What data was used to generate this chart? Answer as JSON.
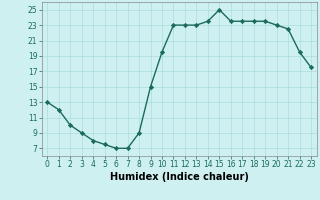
{
  "x": [
    0,
    1,
    2,
    3,
    4,
    5,
    6,
    7,
    8,
    9,
    10,
    11,
    12,
    13,
    14,
    15,
    16,
    17,
    18,
    19,
    20,
    21,
    22,
    23
  ],
  "y": [
    13,
    12,
    10,
    9,
    8,
    7.5,
    7,
    7,
    9,
    15,
    19.5,
    23,
    23,
    23,
    23.5,
    25,
    23.5,
    23.5,
    23.5,
    23.5,
    23,
    22.5,
    19.5,
    17.5
  ],
  "line_color": "#1a6b5a",
  "marker": "D",
  "marker_size": 2.2,
  "bg_color": "#cff0f0",
  "grid_color": "#aadddd",
  "xlabel": "Humidex (Indice chaleur)",
  "xlim": [
    -0.5,
    23.5
  ],
  "ylim": [
    6,
    26
  ],
  "yticks": [
    7,
    9,
    11,
    13,
    15,
    17,
    19,
    21,
    23,
    25
  ],
  "xticks": [
    0,
    1,
    2,
    3,
    4,
    5,
    6,
    7,
    8,
    9,
    10,
    11,
    12,
    13,
    14,
    15,
    16,
    17,
    18,
    19,
    20,
    21,
    22,
    23
  ],
  "tick_fontsize": 5.5,
  "xlabel_fontsize": 7,
  "linewidth": 1.0
}
